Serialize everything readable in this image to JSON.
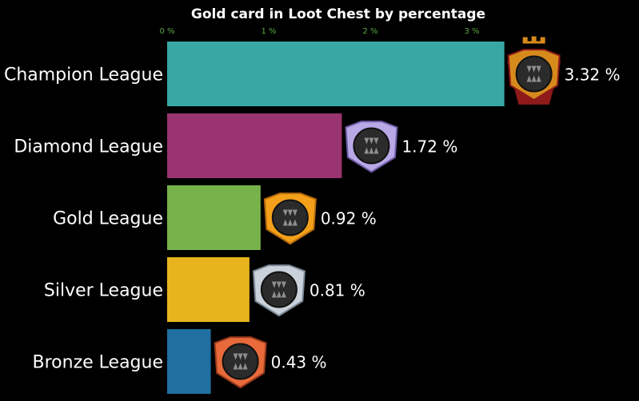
{
  "chart_data": {
    "type": "bar",
    "orientation": "horizontal",
    "title": "Gold card in Loot Chest by percentage",
    "xlabel": "",
    "ylabel": "",
    "xlim": [
      0,
      3.32
    ],
    "xticks": [
      0,
      1,
      2,
      3
    ],
    "xtick_labels": [
      "0 %",
      "1 %",
      "2 %",
      "3 %"
    ],
    "grid": false,
    "legend": "none",
    "categories": [
      "Champion League",
      "Diamond League",
      "Gold League",
      "Silver League",
      "Bronze League"
    ],
    "values": [
      3.32,
      1.72,
      0.92,
      0.81,
      0.43
    ],
    "value_labels": [
      "3.32 %",
      "1.72 %",
      "0.92 %",
      "0.81 %",
      "0.43 %"
    ],
    "colors": [
      "#38a8a4",
      "#9a3470",
      "#78b24a",
      "#e8b41e",
      "#1f6fa0"
    ],
    "badges": [
      {
        "icon": "champion-league-badge-icon",
        "color": "#d68a1c",
        "accent": "#8e1a1a"
      },
      {
        "icon": "diamond-league-badge-icon",
        "color": "#b9a8e6",
        "accent": "#6f5ea8"
      },
      {
        "icon": "gold-league-badge-icon",
        "color": "#f4a01a",
        "accent": "#b86b0e"
      },
      {
        "icon": "silver-league-badge-icon",
        "color": "#c9d2da",
        "accent": "#7b8894"
      },
      {
        "icon": "bronze-league-badge-icon",
        "color": "#e86a3a",
        "accent": "#9a3b1c"
      }
    ],
    "background": "#000000",
    "tick_color": "#5aa843"
  }
}
